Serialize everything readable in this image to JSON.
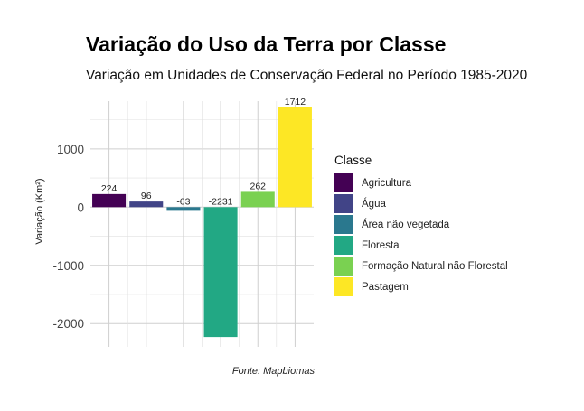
{
  "title": "Variação do Uso da Terra por Classe",
  "subtitle": "Variação em Unidades de Conservação Federal no Período 1985-2020",
  "caption": "Fonte: Mapbiomas",
  "chart_data": {
    "type": "bar",
    "categories": [
      "Agricultura",
      "Água",
      "Área não vegetada",
      "Floresta",
      "Formação Natural não Florestal",
      "Pastagem"
    ],
    "values": [
      224,
      96,
      -63,
      -2231,
      262,
      1712
    ],
    "data_labels": [
      "224",
      "96",
      "-63",
      "-2231",
      "262",
      "1712"
    ],
    "colors": [
      "#440154",
      "#414487",
      "#2A788E",
      "#22A884",
      "#7AD151",
      "#FDE725"
    ],
    "xlabel": "",
    "ylabel": "Variação (Km²)",
    "ylim": [
      -2400,
      1820
    ],
    "yticks": [
      1000,
      0,
      -1000,
      -2000
    ],
    "ytick_labels": [
      "1000",
      "0",
      "-1000",
      "-2000"
    ],
    "grid": true,
    "legend_title": "Classe",
    "legend_position": "right"
  }
}
